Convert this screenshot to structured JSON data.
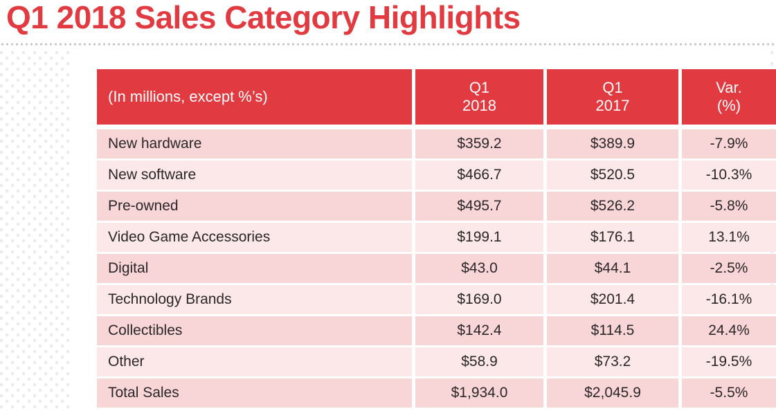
{
  "title": "Q1 2018 Sales Category Highlights",
  "colors": {
    "brand_red": "#e13b41",
    "row_dark_pink": "#f8d5d7",
    "row_light_pink": "#fce8e9",
    "text_dark": "#2b2627"
  },
  "table": {
    "header": [
      "(In millions, except %’s)",
      "Q1\n2018",
      "Q1\n2017",
      "Var.\n(%)"
    ],
    "rows": [
      [
        "New hardware",
        "$359.2",
        "$389.9",
        "-7.9%"
      ],
      [
        "New software",
        "$466.7",
        "$520.5",
        "-10.3%"
      ],
      [
        "Pre-owned",
        "$495.7",
        "$526.2",
        "-5.8%"
      ],
      [
        "Video Game Accessories",
        "$199.1",
        "$176.1",
        "13.1%"
      ],
      [
        "Digital",
        "$43.0",
        "$44.1",
        "-2.5%"
      ],
      [
        "Technology Brands",
        "$169.0",
        "$201.4",
        "-16.1%"
      ],
      [
        "Collectibles",
        "$142.4",
        "$114.5",
        "24.4%"
      ],
      [
        "Other",
        "$58.9",
        "$73.2",
        "-19.5%"
      ],
      [
        "Total Sales",
        "$1,934.0",
        "$2,045.9",
        "-5.5%"
      ]
    ]
  },
  "chart_data": {
    "type": "table",
    "title": "Q1 2018 Sales Category Highlights",
    "units": "In millions, except %'s",
    "columns": [
      "Category",
      "Q1 2018",
      "Q1 2017",
      "Var. (%)"
    ],
    "rows": [
      {
        "category": "New hardware",
        "q1_2018": 359.2,
        "q1_2017": 389.9,
        "var_pct": -7.9
      },
      {
        "category": "New software",
        "q1_2018": 466.7,
        "q1_2017": 520.5,
        "var_pct": -10.3
      },
      {
        "category": "Pre-owned",
        "q1_2018": 495.7,
        "q1_2017": 526.2,
        "var_pct": -5.8
      },
      {
        "category": "Video Game Accessories",
        "q1_2018": 199.1,
        "q1_2017": 176.1,
        "var_pct": 13.1
      },
      {
        "category": "Digital",
        "q1_2018": 43.0,
        "q1_2017": 44.1,
        "var_pct": -2.5
      },
      {
        "category": "Technology Brands",
        "q1_2018": 169.0,
        "q1_2017": 201.4,
        "var_pct": -16.1
      },
      {
        "category": "Collectibles",
        "q1_2018": 142.4,
        "q1_2017": 114.5,
        "var_pct": 24.4
      },
      {
        "category": "Other",
        "q1_2018": 58.9,
        "q1_2017": 73.2,
        "var_pct": -19.5
      },
      {
        "category": "Total Sales",
        "q1_2018": 1934.0,
        "q1_2017": 2045.9,
        "var_pct": -5.5
      }
    ]
  }
}
